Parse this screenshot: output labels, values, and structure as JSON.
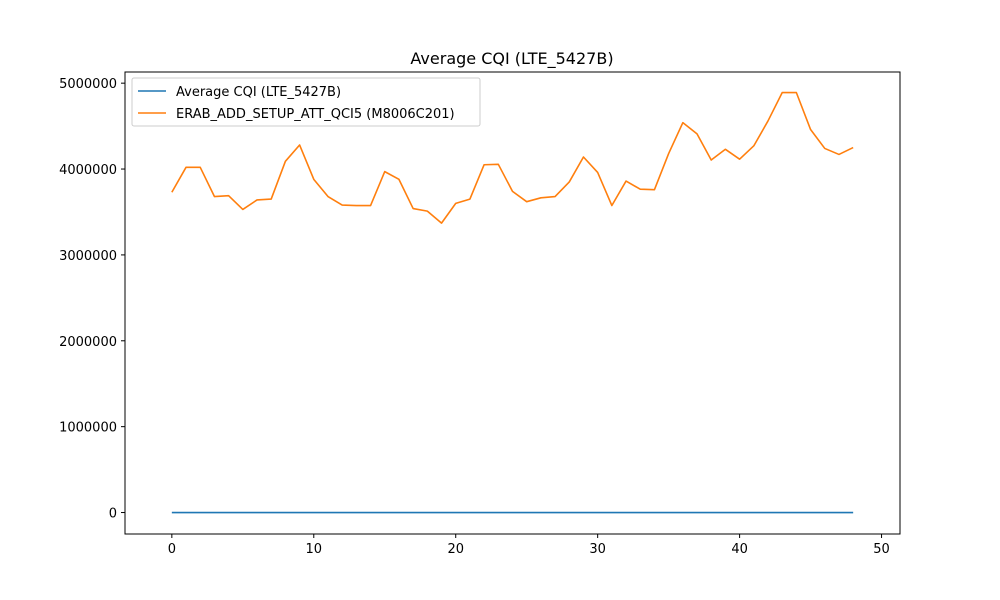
{
  "chart_data": {
    "type": "line",
    "title": "Average CQI (LTE_5427B)",
    "xlabel": "",
    "ylabel": "",
    "xlim": [
      -3.3,
      51.3
    ],
    "ylim": [
      -250000,
      5130000
    ],
    "xticks": [
      0,
      10,
      20,
      30,
      40,
      50
    ],
    "xtick_labels": [
      "0",
      "10",
      "20",
      "30",
      "40",
      "50"
    ],
    "yticks": [
      0,
      1000000,
      2000000,
      3000000,
      4000000,
      5000000
    ],
    "ytick_labels": [
      "0",
      "1000000",
      "2000000",
      "3000000",
      "4000000",
      "5000000"
    ],
    "grid": false,
    "legend_position": "top-left",
    "series": [
      {
        "name": "Average CQI (LTE_5427B)",
        "color": "#1f77b4",
        "x": [
          0,
          1,
          2,
          3,
          4,
          5,
          6,
          7,
          8,
          9,
          10,
          11,
          12,
          13,
          14,
          15,
          16,
          17,
          18,
          19,
          20,
          21,
          22,
          23,
          24,
          25,
          26,
          27,
          28,
          29,
          30,
          31,
          32,
          33,
          34,
          35,
          36,
          37,
          38,
          39,
          40,
          41,
          42,
          43,
          44,
          45,
          46,
          47,
          48
        ],
        "values": [
          10,
          10,
          10,
          10,
          10,
          10,
          10,
          10,
          10,
          10,
          10,
          10,
          10,
          10,
          10,
          10,
          10,
          10,
          10,
          10,
          10,
          10,
          10,
          10,
          10,
          10,
          10,
          10,
          10,
          10,
          10,
          10,
          10,
          10,
          10,
          10,
          10,
          10,
          10,
          10,
          10,
          10,
          10,
          10,
          10,
          10,
          10,
          10,
          10
        ]
      },
      {
        "name": "ERAB_ADD_SETUP_ATT_QCI5 (M8006C201)",
        "color": "#ff7f0e",
        "x": [
          0,
          1,
          2,
          3,
          4,
          5,
          6,
          7,
          8,
          9,
          10,
          11,
          12,
          13,
          14,
          15,
          16,
          17,
          18,
          19,
          20,
          21,
          22,
          23,
          24,
          25,
          26,
          27,
          28,
          29,
          30,
          31,
          32,
          33,
          34,
          35,
          36,
          37,
          38,
          39,
          40,
          41,
          42,
          43,
          44,
          45,
          46,
          47,
          48
        ],
        "values": [
          3730000,
          4020000,
          4020000,
          3680000,
          3690000,
          3530000,
          3640000,
          3650000,
          4090000,
          4280000,
          3880000,
          3680000,
          3580000,
          3575000,
          3575000,
          3970000,
          3880000,
          3540000,
          3510000,
          3370000,
          3600000,
          3650000,
          4050000,
          4055000,
          3740000,
          3620000,
          3665000,
          3680000,
          3850000,
          4140000,
          3960000,
          3575000,
          3860000,
          3765000,
          3760000,
          4180000,
          4540000,
          4410000,
          4105000,
          4230000,
          4115000,
          4270000,
          4560000,
          4890000,
          4890000,
          4460000,
          4240000,
          4170000,
          4250000
        ]
      }
    ]
  }
}
